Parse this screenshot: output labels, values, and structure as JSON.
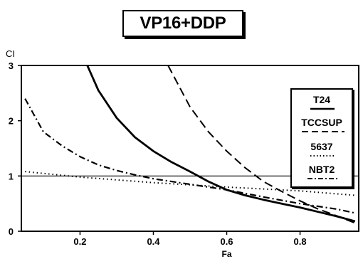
{
  "chart_data": {
    "type": "line",
    "title": "VP16+DDP",
    "xlabel": "Fa",
    "ylabel": "CI",
    "xlim": [
      0.04,
      0.96
    ],
    "ylim": [
      0,
      3
    ],
    "xticks": [
      0.2,
      0.4,
      0.6,
      0.8
    ],
    "xtick_labels": [
      "0.2",
      "0.4",
      "0.6",
      "0.8"
    ],
    "yticks": [
      0,
      1,
      2,
      3
    ],
    "ytick_labels": [
      "0",
      "1",
      "2",
      "3"
    ],
    "reference_line": 1,
    "legend_position": "right",
    "series": [
      {
        "name": "T24",
        "style": "solid",
        "x": [
          0.22,
          0.25,
          0.3,
          0.35,
          0.4,
          0.45,
          0.5,
          0.55,
          0.6,
          0.65,
          0.7,
          0.75,
          0.8,
          0.85,
          0.9,
          0.95
        ],
        "y": [
          3.0,
          2.55,
          2.05,
          1.7,
          1.45,
          1.25,
          1.08,
          0.9,
          0.75,
          0.65,
          0.57,
          0.5,
          0.43,
          0.35,
          0.27,
          0.18
        ]
      },
      {
        "name": "TCCSUP",
        "style": "dashed",
        "x": [
          0.44,
          0.5,
          0.55,
          0.6,
          0.65,
          0.7,
          0.75,
          0.8,
          0.85,
          0.9,
          0.95
        ],
        "y": [
          3.0,
          2.25,
          1.8,
          1.45,
          1.15,
          0.9,
          0.72,
          0.55,
          0.4,
          0.28,
          0.15
        ]
      },
      {
        "name": "5637",
        "style": "dotted",
        "x": [
          0.05,
          0.2,
          0.4,
          0.6,
          0.8,
          0.95
        ],
        "y": [
          1.08,
          0.98,
          0.88,
          0.8,
          0.73,
          0.65
        ]
      },
      {
        "name": "NBT2",
        "style": "dashdot",
        "x": [
          0.05,
          0.1,
          0.15,
          0.2,
          0.25,
          0.3,
          0.35,
          0.4,
          0.5,
          0.6,
          0.7,
          0.8,
          0.9,
          0.95
        ],
        "y": [
          2.4,
          1.8,
          1.55,
          1.35,
          1.2,
          1.1,
          1.02,
          0.95,
          0.85,
          0.75,
          0.62,
          0.5,
          0.4,
          0.33
        ]
      }
    ]
  }
}
